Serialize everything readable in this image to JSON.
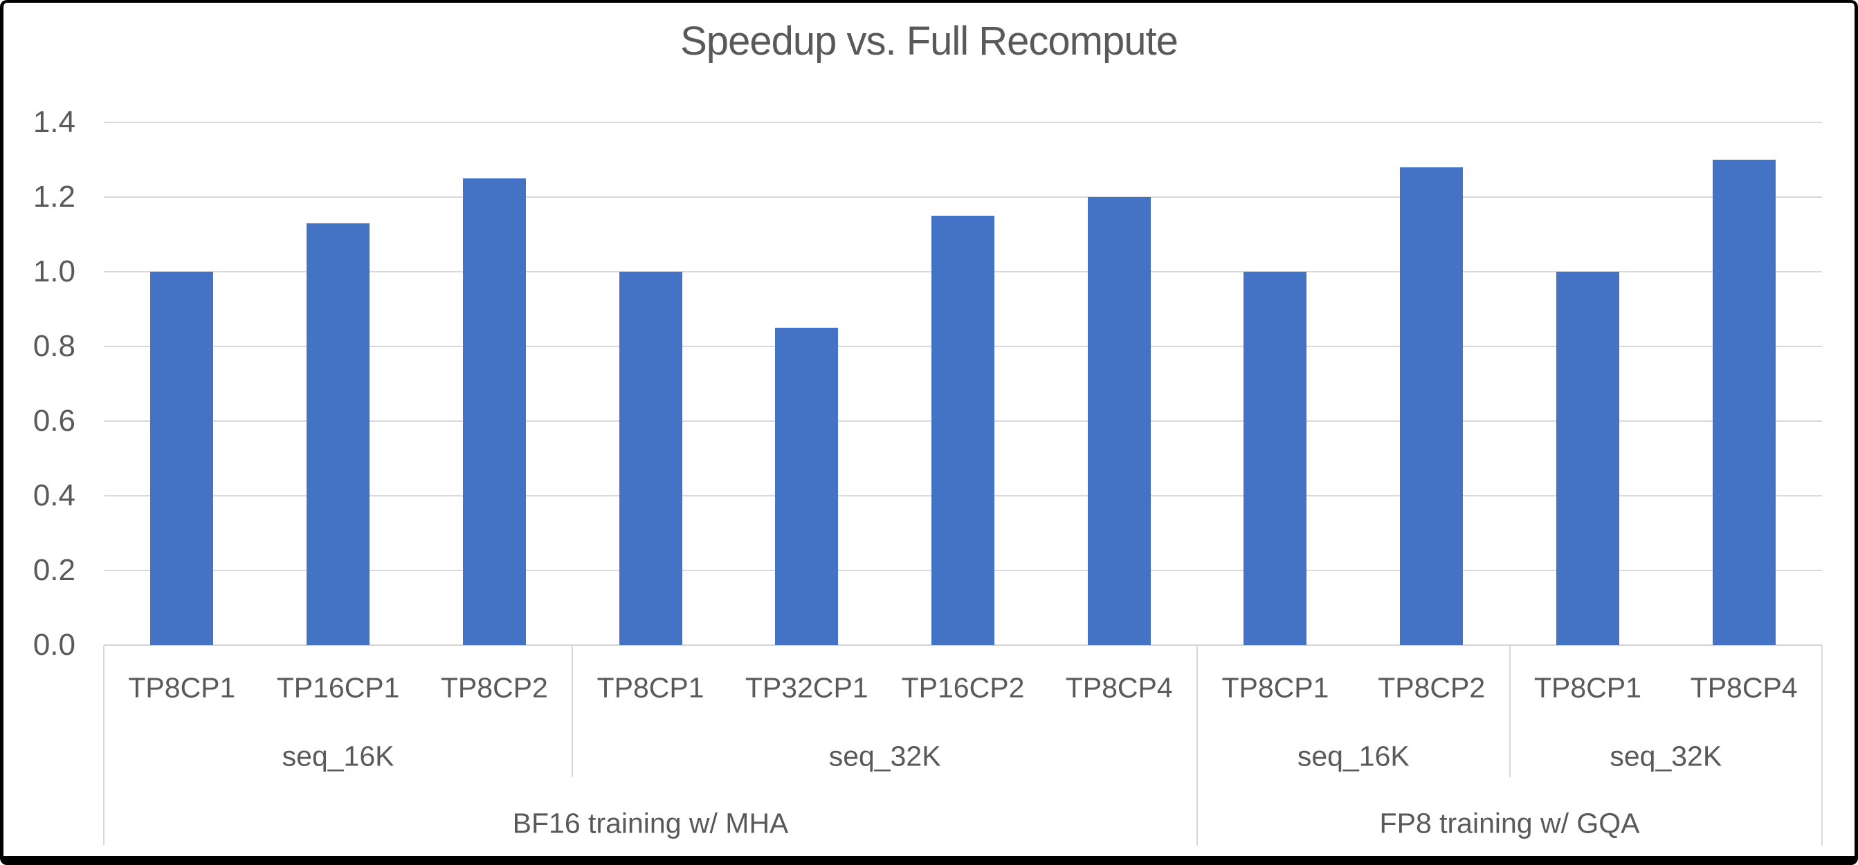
{
  "chart_data": {
    "type": "bar",
    "title": "Speedup vs. Full Recompute",
    "categories": [
      "TP8CP1",
      "TP16CP1",
      "TP8CP2",
      "TP8CP1",
      "TP32CP1",
      "TP16CP2",
      "TP8CP4",
      "TP8CP1",
      "TP8CP2",
      "TP8CP1",
      "TP8CP4"
    ],
    "values": [
      1.0,
      1.13,
      1.25,
      1.0,
      0.85,
      1.15,
      1.2,
      1.0,
      1.28,
      1.0,
      1.3
    ],
    "group_rows": {
      "seq": [
        {
          "label": "seq_16K",
          "start": 0,
          "end": 2
        },
        {
          "label": "seq_32K",
          "start": 3,
          "end": 6
        },
        {
          "label": "seq_16K",
          "start": 7,
          "end": 8
        },
        {
          "label": "seq_32K",
          "start": 9,
          "end": 10
        }
      ],
      "training": [
        {
          "label": "BF16 training w/ MHA",
          "start": 0,
          "end": 6
        },
        {
          "label": "FP8 training w/ GQA",
          "start": 7,
          "end": 10
        }
      ]
    },
    "y_tick_labels": [
      "0.0",
      "0.2",
      "0.4",
      "0.6",
      "0.8",
      "1.0",
      "1.2",
      "1.4"
    ],
    "y_tick_step": 0.2,
    "ylim": [
      0,
      1.4
    ],
    "xlabel": "",
    "ylabel": "",
    "grid": true,
    "legend_position": "none",
    "bar_color": "#4472C4",
    "grid_color": "#D9D9D9",
    "text_color": "#595959"
  }
}
